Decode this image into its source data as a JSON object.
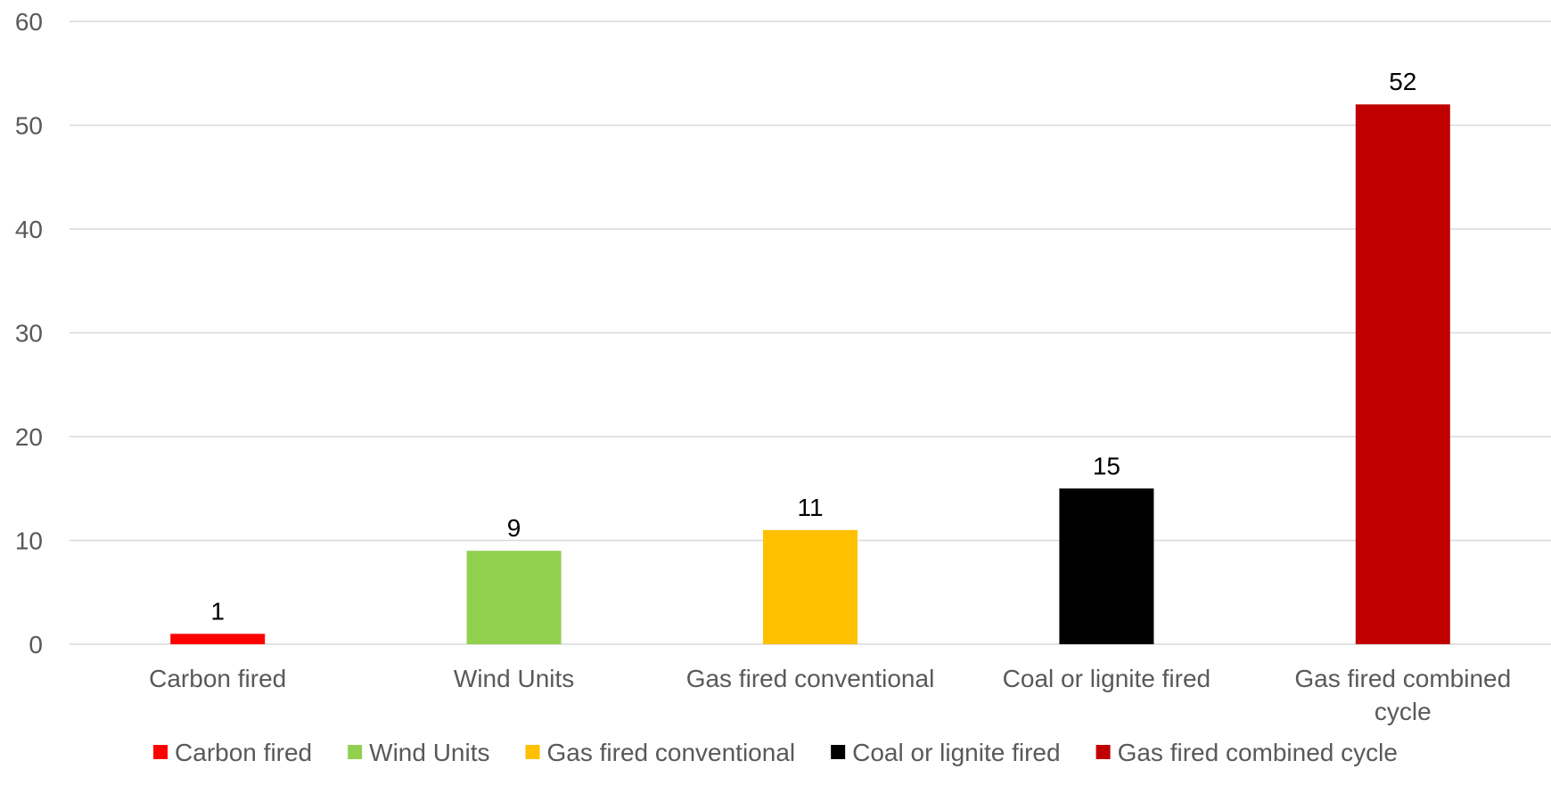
{
  "chart_data": {
    "type": "bar",
    "categories": [
      "Carbon fired",
      "Wind Units",
      "Gas fired conventional",
      "Coal or lignite fired",
      "Gas fired combined cycle"
    ],
    "category_label_lines": [
      [
        "Carbon fired"
      ],
      [
        "Wind Units"
      ],
      [
        "Gas fired conventional"
      ],
      [
        "Coal or lignite fired"
      ],
      [
        "Gas fired combined",
        "cycle"
      ]
    ],
    "values": [
      1,
      9,
      11,
      15,
      52
    ],
    "data_labels": [
      "1",
      "9",
      "11",
      "15",
      "52"
    ],
    "colors": [
      "#ff0000",
      "#92d050",
      "#ffc000",
      "#000000",
      "#c00000"
    ],
    "legend": {
      "placement": "bottom",
      "entries": [
        {
          "label": "Carbon fired",
          "color": "#ff0000"
        },
        {
          "label": "Wind Units",
          "color": "#92d050"
        },
        {
          "label": "Gas fired conventional",
          "color": "#ffc000"
        },
        {
          "label": "Coal or lignite fired",
          "color": "#000000"
        },
        {
          "label": "Gas fired combined cycle",
          "color": "#c00000"
        }
      ]
    },
    "title": "",
    "xlabel": "",
    "ylabel": "",
    "ylim": [
      0,
      60
    ],
    "yticks": [
      0,
      10,
      20,
      30,
      40,
      50,
      60
    ],
    "grid": true
  }
}
